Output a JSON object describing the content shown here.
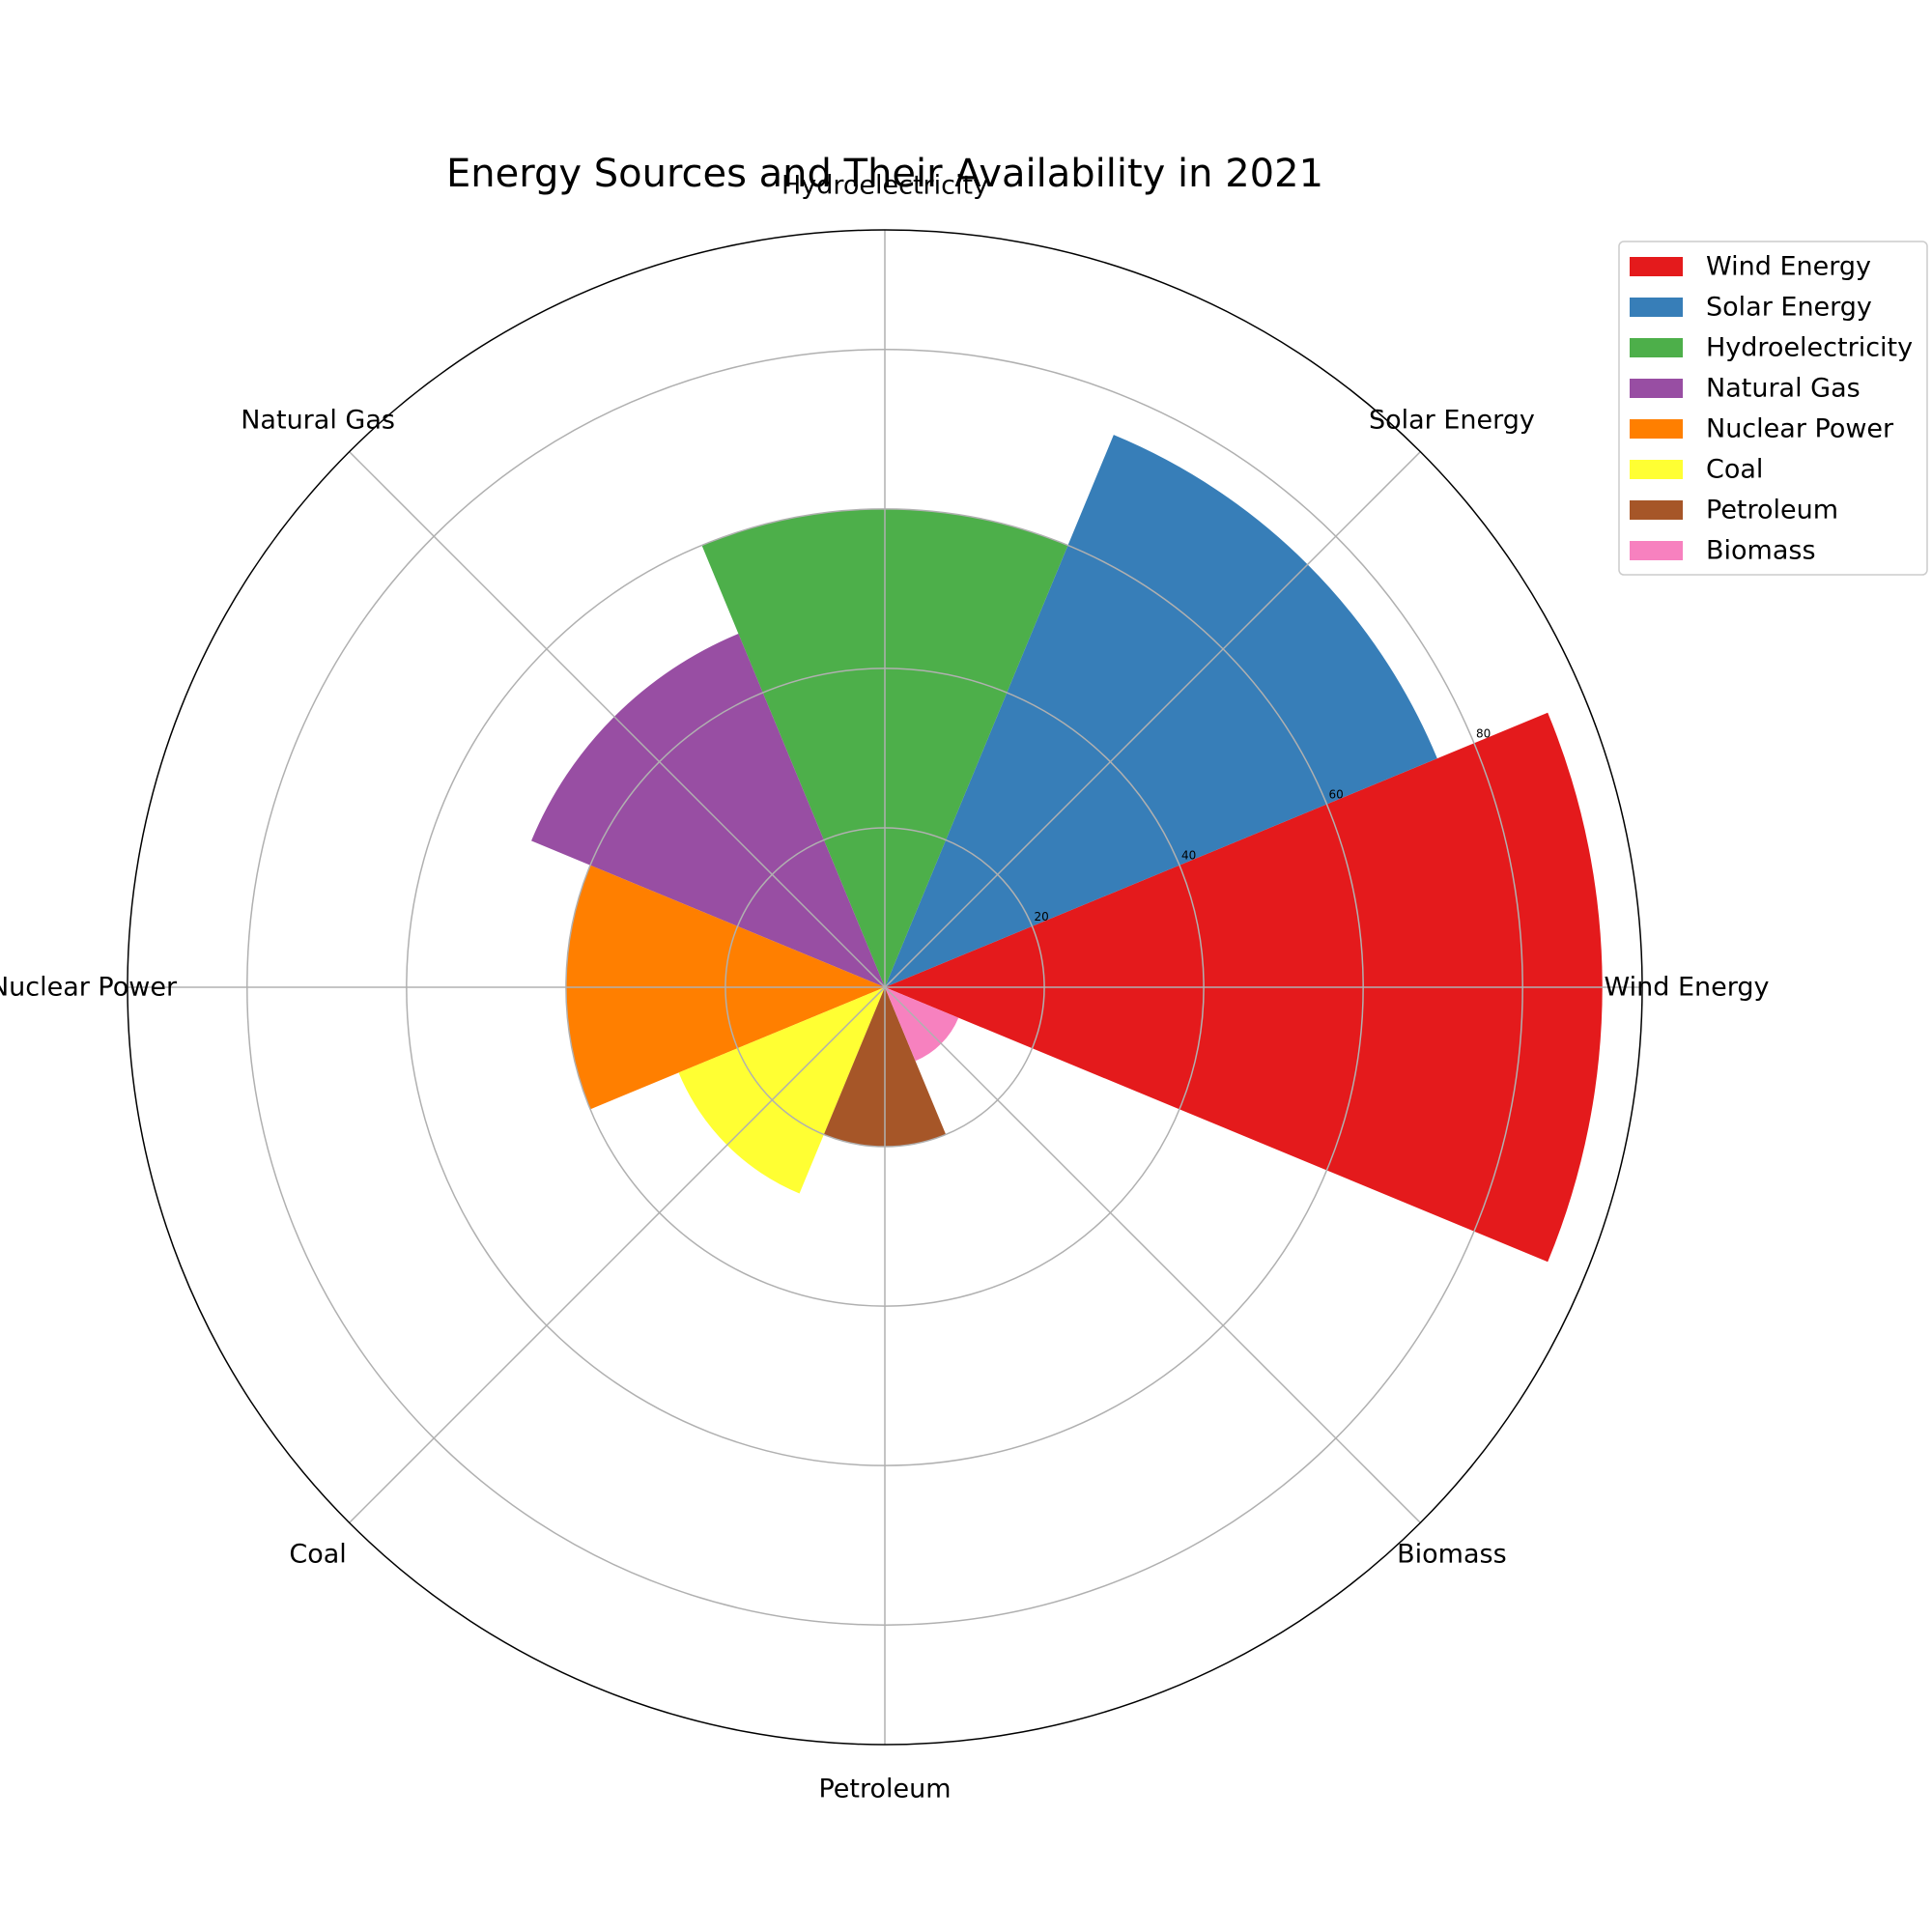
{
  "chart_data": {
    "type": "polar-bar",
    "title": "Energy Sources and Their Availability in 2021",
    "categories": [
      "Wind Energy",
      "Solar Energy",
      "Hydroelectricity",
      "Natural Gas",
      "Nuclear Power",
      "Coal",
      "Petroleum",
      "Biomass"
    ],
    "values": [
      90,
      75,
      60,
      48,
      40,
      28,
      20,
      10
    ],
    "colors": [
      "#e41a1c",
      "#377eb8",
      "#4daf4a",
      "#984ea3",
      "#ff7f00",
      "#ffff33",
      "#a65628",
      "#f781bf"
    ],
    "radial_ticks": [
      "20",
      "40",
      "60",
      "80"
    ],
    "radial_tick_values": [
      20,
      40,
      60,
      80
    ],
    "rmax": 95,
    "legend": {
      "placement": "top-right",
      "entries": [
        "Wind Energy",
        "Solar Energy",
        "Hydroelectricity",
        "Natural Gas",
        "Nuclear Power",
        "Coal",
        "Petroleum",
        "Biomass"
      ]
    }
  }
}
